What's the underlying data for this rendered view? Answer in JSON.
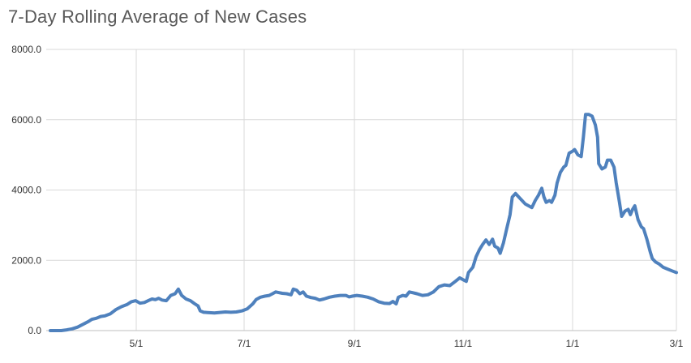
{
  "chart_data": {
    "type": "line",
    "title": "7-Day Rolling Average of New Cases",
    "xlabel": "",
    "ylabel": "",
    "x_tick_labels": [
      "5/1",
      "7/1",
      "9/1",
      "11/1",
      "1/1",
      "3/1"
    ],
    "y_tick_labels": [
      "0.0",
      "2000.0",
      "4000.0",
      "6000.0",
      "8000.0"
    ],
    "ylim": [
      0,
      8000
    ],
    "grid": true,
    "legend": "none",
    "line_color": "#4f81bd",
    "grid_color": "#d9d9d9",
    "series": [
      {
        "values": [
          [
            0,
            0
          ],
          [
            10,
            0
          ],
          [
            15,
            20
          ],
          [
            20,
            50
          ],
          [
            25,
            100
          ],
          [
            30,
            180
          ],
          [
            35,
            260
          ],
          [
            38,
            320
          ],
          [
            42,
            350
          ],
          [
            46,
            400
          ],
          [
            50,
            420
          ],
          [
            55,
            480
          ],
          [
            60,
            600
          ],
          [
            65,
            680
          ],
          [
            70,
            740
          ],
          [
            74,
            820
          ],
          [
            78,
            850
          ],
          [
            82,
            780
          ],
          [
            86,
            800
          ],
          [
            90,
            860
          ],
          [
            93,
            900
          ],
          [
            96,
            880
          ],
          [
            99,
            920
          ],
          [
            102,
            870
          ],
          [
            106,
            850
          ],
          [
            110,
            1000
          ],
          [
            114,
            1050
          ],
          [
            117,
            1180
          ],
          [
            120,
            1000
          ],
          [
            124,
            900
          ],
          [
            128,
            850
          ],
          [
            132,
            760
          ],
          [
            135,
            700
          ],
          [
            137,
            560
          ],
          [
            140,
            520
          ],
          [
            150,
            500
          ],
          [
            160,
            530
          ],
          [
            165,
            520
          ],
          [
            170,
            530
          ],
          [
            175,
            560
          ],
          [
            180,
            620
          ],
          [
            185,
            760
          ],
          [
            188,
            880
          ],
          [
            192,
            950
          ],
          [
            196,
            980
          ],
          [
            200,
            1000
          ],
          [
            203,
            1050
          ],
          [
            206,
            1100
          ],
          [
            209,
            1080
          ],
          [
            212,
            1060
          ],
          [
            216,
            1050
          ],
          [
            220,
            1020
          ],
          [
            222,
            1180
          ],
          [
            225,
            1150
          ],
          [
            228,
            1050
          ],
          [
            231,
            1100
          ],
          [
            234,
            980
          ],
          [
            238,
            940
          ],
          [
            242,
            920
          ],
          [
            246,
            870
          ],
          [
            250,
            900
          ],
          [
            255,
            950
          ],
          [
            260,
            980
          ],
          [
            265,
            1000
          ],
          [
            270,
            1000
          ],
          [
            273,
            960
          ],
          [
            276,
            980
          ],
          [
            280,
            1000
          ],
          [
            285,
            980
          ],
          [
            290,
            950
          ],
          [
            295,
            900
          ],
          [
            300,
            820
          ],
          [
            305,
            780
          ],
          [
            310,
            770
          ],
          [
            313,
            830
          ],
          [
            316,
            760
          ],
          [
            318,
            950
          ],
          [
            322,
            1000
          ],
          [
            325,
            980
          ],
          [
            328,
            1100
          ],
          [
            331,
            1080
          ],
          [
            335,
            1050
          ],
          [
            340,
            1000
          ],
          [
            345,
            1020
          ],
          [
            350,
            1100
          ],
          [
            355,
            1250
          ],
          [
            360,
            1300
          ],
          [
            365,
            1280
          ],
          [
            370,
            1400
          ],
          [
            374,
            1500
          ],
          [
            377,
            1450
          ],
          [
            380,
            1400
          ],
          [
            382,
            1650
          ],
          [
            386,
            1800
          ],
          [
            389,
            2100
          ],
          [
            392,
            2300
          ],
          [
            395,
            2450
          ],
          [
            398,
            2580
          ],
          [
            401,
            2450
          ],
          [
            404,
            2600
          ],
          [
            406,
            2400
          ],
          [
            409,
            2350
          ],
          [
            411,
            2200
          ],
          [
            414,
            2500
          ],
          [
            417,
            2900
          ],
          [
            420,
            3300
          ],
          [
            422,
            3800
          ],
          [
            425,
            3900
          ],
          [
            428,
            3800
          ],
          [
            431,
            3700
          ],
          [
            434,
            3600
          ],
          [
            437,
            3550
          ],
          [
            440,
            3500
          ],
          [
            443,
            3700
          ],
          [
            446,
            3850
          ],
          [
            449,
            4050
          ],
          [
            451,
            3800
          ],
          [
            453,
            3650
          ],
          [
            456,
            3700
          ],
          [
            458,
            3650
          ],
          [
            461,
            3850
          ],
          [
            463,
            4200
          ],
          [
            466,
            4500
          ],
          [
            469,
            4650
          ],
          [
            471,
            4700
          ],
          [
            474,
            5050
          ],
          [
            477,
            5100
          ],
          [
            479,
            5150
          ],
          [
            482,
            5000
          ],
          [
            485,
            4950
          ],
          [
            487,
            5500
          ],
          [
            489,
            6150
          ],
          [
            492,
            6150
          ],
          [
            495,
            6100
          ],
          [
            498,
            5850
          ],
          [
            500,
            5500
          ],
          [
            501,
            4750
          ],
          [
            504,
            4600
          ],
          [
            507,
            4650
          ],
          [
            509,
            4850
          ],
          [
            512,
            4850
          ],
          [
            515,
            4650
          ],
          [
            517,
            4200
          ],
          [
            520,
            3650
          ],
          [
            522,
            3250
          ],
          [
            525,
            3400
          ],
          [
            528,
            3450
          ],
          [
            530,
            3300
          ],
          [
            532,
            3450
          ],
          [
            534,
            3550
          ],
          [
            537,
            3150
          ],
          [
            540,
            2950
          ],
          [
            542,
            2900
          ],
          [
            545,
            2600
          ],
          [
            548,
            2250
          ],
          [
            550,
            2050
          ],
          [
            553,
            1950
          ],
          [
            556,
            1900
          ],
          [
            560,
            1800
          ],
          [
            564,
            1750
          ],
          [
            568,
            1700
          ],
          [
            572,
            1650
          ]
        ]
      }
    ]
  }
}
